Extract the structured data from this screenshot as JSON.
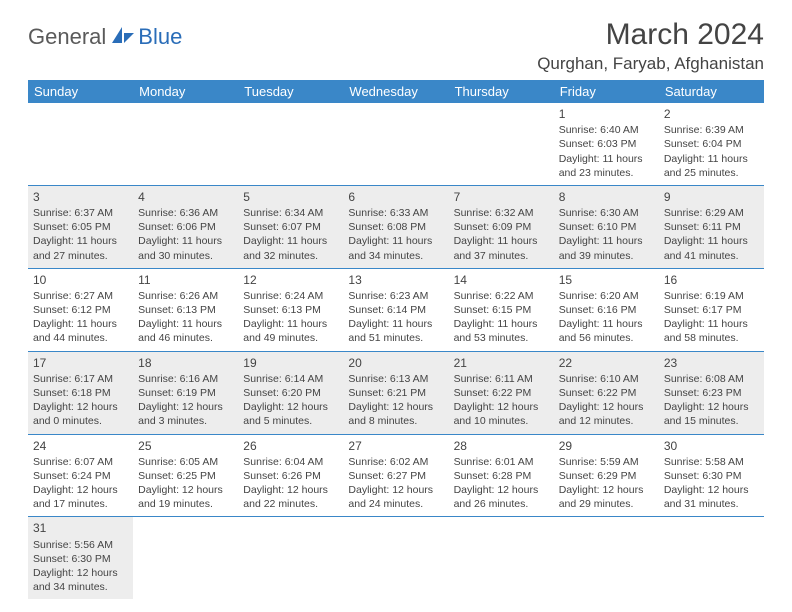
{
  "logo": {
    "general": "General",
    "blue": "Blue"
  },
  "title": "March 2024",
  "location": "Qurghan, Faryab, Afghanistan",
  "colors": {
    "header_bg": "#3a87c8",
    "alt_row_bg": "#ededed",
    "border": "#3a87c8",
    "text": "#444444",
    "logo_gray": "#5a5a5a",
    "logo_blue": "#2a6db8"
  },
  "weekdays": [
    "Sunday",
    "Monday",
    "Tuesday",
    "Wednesday",
    "Thursday",
    "Friday",
    "Saturday"
  ],
  "weeks": [
    {
      "alt": false,
      "days": [
        null,
        null,
        null,
        null,
        null,
        {
          "n": "1",
          "sr": "Sunrise: 6:40 AM",
          "ss": "Sunset: 6:03 PM",
          "d1": "Daylight: 11 hours",
          "d2": "and 23 minutes."
        },
        {
          "n": "2",
          "sr": "Sunrise: 6:39 AM",
          "ss": "Sunset: 6:04 PM",
          "d1": "Daylight: 11 hours",
          "d2": "and 25 minutes."
        }
      ]
    },
    {
      "alt": true,
      "days": [
        {
          "n": "3",
          "sr": "Sunrise: 6:37 AM",
          "ss": "Sunset: 6:05 PM",
          "d1": "Daylight: 11 hours",
          "d2": "and 27 minutes."
        },
        {
          "n": "4",
          "sr": "Sunrise: 6:36 AM",
          "ss": "Sunset: 6:06 PM",
          "d1": "Daylight: 11 hours",
          "d2": "and 30 minutes."
        },
        {
          "n": "5",
          "sr": "Sunrise: 6:34 AM",
          "ss": "Sunset: 6:07 PM",
          "d1": "Daylight: 11 hours",
          "d2": "and 32 minutes."
        },
        {
          "n": "6",
          "sr": "Sunrise: 6:33 AM",
          "ss": "Sunset: 6:08 PM",
          "d1": "Daylight: 11 hours",
          "d2": "and 34 minutes."
        },
        {
          "n": "7",
          "sr": "Sunrise: 6:32 AM",
          "ss": "Sunset: 6:09 PM",
          "d1": "Daylight: 11 hours",
          "d2": "and 37 minutes."
        },
        {
          "n": "8",
          "sr": "Sunrise: 6:30 AM",
          "ss": "Sunset: 6:10 PM",
          "d1": "Daylight: 11 hours",
          "d2": "and 39 minutes."
        },
        {
          "n": "9",
          "sr": "Sunrise: 6:29 AM",
          "ss": "Sunset: 6:11 PM",
          "d1": "Daylight: 11 hours",
          "d2": "and 41 minutes."
        }
      ]
    },
    {
      "alt": false,
      "days": [
        {
          "n": "10",
          "sr": "Sunrise: 6:27 AM",
          "ss": "Sunset: 6:12 PM",
          "d1": "Daylight: 11 hours",
          "d2": "and 44 minutes."
        },
        {
          "n": "11",
          "sr": "Sunrise: 6:26 AM",
          "ss": "Sunset: 6:13 PM",
          "d1": "Daylight: 11 hours",
          "d2": "and 46 minutes."
        },
        {
          "n": "12",
          "sr": "Sunrise: 6:24 AM",
          "ss": "Sunset: 6:13 PM",
          "d1": "Daylight: 11 hours",
          "d2": "and 49 minutes."
        },
        {
          "n": "13",
          "sr": "Sunrise: 6:23 AM",
          "ss": "Sunset: 6:14 PM",
          "d1": "Daylight: 11 hours",
          "d2": "and 51 minutes."
        },
        {
          "n": "14",
          "sr": "Sunrise: 6:22 AM",
          "ss": "Sunset: 6:15 PM",
          "d1": "Daylight: 11 hours",
          "d2": "and 53 minutes."
        },
        {
          "n": "15",
          "sr": "Sunrise: 6:20 AM",
          "ss": "Sunset: 6:16 PM",
          "d1": "Daylight: 11 hours",
          "d2": "and 56 minutes."
        },
        {
          "n": "16",
          "sr": "Sunrise: 6:19 AM",
          "ss": "Sunset: 6:17 PM",
          "d1": "Daylight: 11 hours",
          "d2": "and 58 minutes."
        }
      ]
    },
    {
      "alt": true,
      "days": [
        {
          "n": "17",
          "sr": "Sunrise: 6:17 AM",
          "ss": "Sunset: 6:18 PM",
          "d1": "Daylight: 12 hours",
          "d2": "and 0 minutes."
        },
        {
          "n": "18",
          "sr": "Sunrise: 6:16 AM",
          "ss": "Sunset: 6:19 PM",
          "d1": "Daylight: 12 hours",
          "d2": "and 3 minutes."
        },
        {
          "n": "19",
          "sr": "Sunrise: 6:14 AM",
          "ss": "Sunset: 6:20 PM",
          "d1": "Daylight: 12 hours",
          "d2": "and 5 minutes."
        },
        {
          "n": "20",
          "sr": "Sunrise: 6:13 AM",
          "ss": "Sunset: 6:21 PM",
          "d1": "Daylight: 12 hours",
          "d2": "and 8 minutes."
        },
        {
          "n": "21",
          "sr": "Sunrise: 6:11 AM",
          "ss": "Sunset: 6:22 PM",
          "d1": "Daylight: 12 hours",
          "d2": "and 10 minutes."
        },
        {
          "n": "22",
          "sr": "Sunrise: 6:10 AM",
          "ss": "Sunset: 6:22 PM",
          "d1": "Daylight: 12 hours",
          "d2": "and 12 minutes."
        },
        {
          "n": "23",
          "sr": "Sunrise: 6:08 AM",
          "ss": "Sunset: 6:23 PM",
          "d1": "Daylight: 12 hours",
          "d2": "and 15 minutes."
        }
      ]
    },
    {
      "alt": false,
      "days": [
        {
          "n": "24",
          "sr": "Sunrise: 6:07 AM",
          "ss": "Sunset: 6:24 PM",
          "d1": "Daylight: 12 hours",
          "d2": "and 17 minutes."
        },
        {
          "n": "25",
          "sr": "Sunrise: 6:05 AM",
          "ss": "Sunset: 6:25 PM",
          "d1": "Daylight: 12 hours",
          "d2": "and 19 minutes."
        },
        {
          "n": "26",
          "sr": "Sunrise: 6:04 AM",
          "ss": "Sunset: 6:26 PM",
          "d1": "Daylight: 12 hours",
          "d2": "and 22 minutes."
        },
        {
          "n": "27",
          "sr": "Sunrise: 6:02 AM",
          "ss": "Sunset: 6:27 PM",
          "d1": "Daylight: 12 hours",
          "d2": "and 24 minutes."
        },
        {
          "n": "28",
          "sr": "Sunrise: 6:01 AM",
          "ss": "Sunset: 6:28 PM",
          "d1": "Daylight: 12 hours",
          "d2": "and 26 minutes."
        },
        {
          "n": "29",
          "sr": "Sunrise: 5:59 AM",
          "ss": "Sunset: 6:29 PM",
          "d1": "Daylight: 12 hours",
          "d2": "and 29 minutes."
        },
        {
          "n": "30",
          "sr": "Sunrise: 5:58 AM",
          "ss": "Sunset: 6:30 PM",
          "d1": "Daylight: 12 hours",
          "d2": "and 31 minutes."
        }
      ]
    },
    {
      "alt": true,
      "days": [
        {
          "n": "31",
          "sr": "Sunrise: 5:56 AM",
          "ss": "Sunset: 6:30 PM",
          "d1": "Daylight: 12 hours",
          "d2": "and 34 minutes."
        },
        null,
        null,
        null,
        null,
        null,
        null
      ]
    }
  ]
}
